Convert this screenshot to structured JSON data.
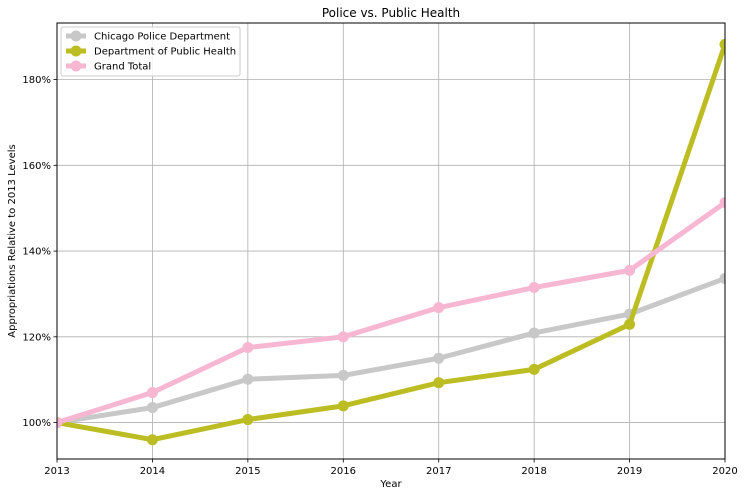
{
  "chart_data": {
    "type": "line",
    "title": "Police vs. Public Health",
    "xlabel": "Year",
    "ylabel": "Appropriations Relative to 2013 Levels",
    "x": [
      "2013",
      "2014",
      "2015",
      "2016",
      "2017",
      "2018",
      "2019",
      "2020"
    ],
    "xlim": [
      2013,
      2020
    ],
    "ylim": [
      0.915,
      1.932
    ],
    "yticks": [
      1.0,
      1.2,
      1.4,
      1.6,
      1.8
    ],
    "ytick_labels": [
      "100%",
      "120%",
      "140%",
      "160%",
      "180%"
    ],
    "grid": true,
    "legend_position": "top-left",
    "series": [
      {
        "name": "Chicago Police Department",
        "color": "#c8c8c8",
        "values": [
          1.0,
          1.035,
          1.101,
          1.11,
          1.15,
          1.209,
          1.253,
          1.336
        ]
      },
      {
        "name": "Department of Public Health",
        "color": "#bcbd22",
        "values": [
          1.0,
          0.96,
          1.007,
          1.039,
          1.093,
          1.124,
          1.229,
          1.882
        ]
      },
      {
        "name": "Grand Total",
        "color": "#f7b6d2",
        "values": [
          1.0,
          1.07,
          1.175,
          1.2,
          1.268,
          1.315,
          1.355,
          1.513
        ]
      }
    ]
  }
}
